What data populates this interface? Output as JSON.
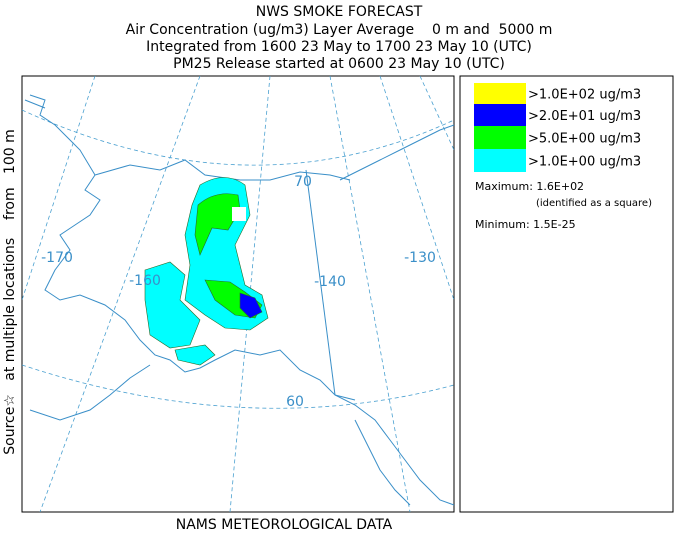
{
  "header": {
    "title": "NWS SMOKE FORECAST",
    "lines": [
      "Air Concentration (ug/m3) Layer Average    0 m and  5000 m",
      "Integrated from 1600 23 May to 1700 23 May 10 (UTC)",
      "PM25 Release started at 0600 23 May 10 (UTC)"
    ]
  },
  "side_label": "Source☆   at multiple locations    from   100 m",
  "map": {
    "labels": [
      "70",
      "-170",
      "-160",
      "-140",
      "-130",
      "60"
    ]
  },
  "legend": {
    "items": [
      {
        "label": ">1.0E+02 ug/m3",
        "color": "#ffff00"
      },
      {
        "label": ">2.0E+01 ug/m3",
        "color": "#0000ff"
      },
      {
        "label": ">5.0E+00 ug/m3",
        "color": "#00ff00"
      },
      {
        "label": ">1.0E+00 ug/m3",
        "color": "#00ffff"
      }
    ],
    "maximum": "Maximum: 1.6E+02",
    "maximum_note": "(identified as a square)",
    "minimum": "Minimum: 1.5E-25"
  },
  "footer": "NAMS METEOROLOGICAL DATA"
}
